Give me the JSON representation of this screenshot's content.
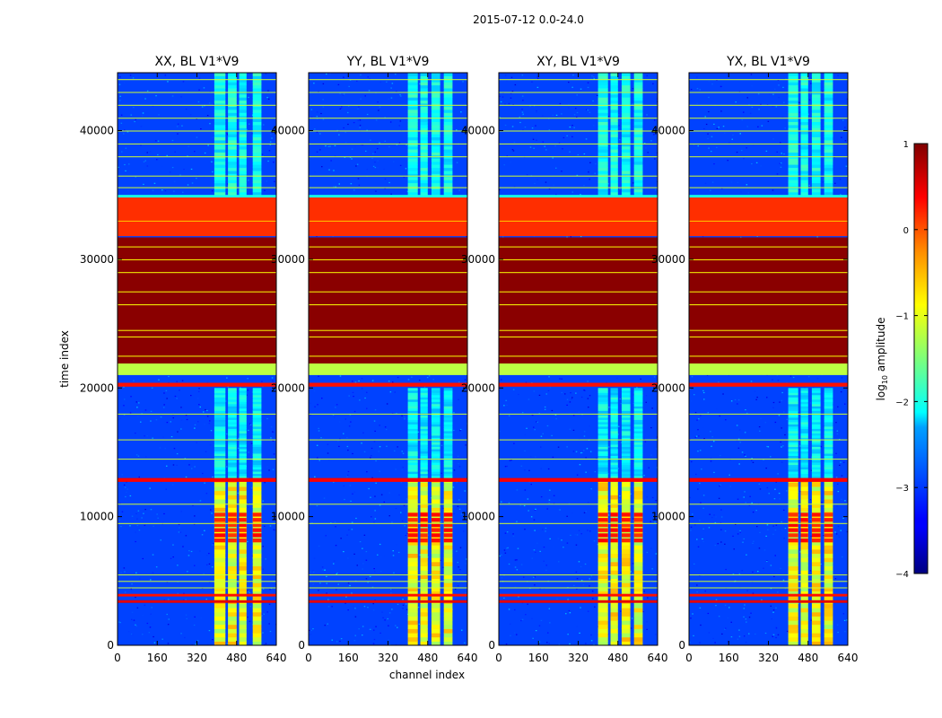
{
  "figure_title": "2015-07-12 0.0-24.0",
  "xlabel": "channel index",
  "ylabel": "time index",
  "colorbar": {
    "label": "log",
    "label_sub": "10",
    "label_rest": " amplitude",
    "range": [
      -4,
      1
    ],
    "ticks": [
      1,
      0,
      -1,
      -2,
      -3,
      -4
    ],
    "tick_labels": [
      "1",
      "0",
      "−1",
      "−2",
      "−3",
      "−4"
    ]
  },
  "chart_data": [
    {
      "type": "heatmap",
      "title": "XX, BL V1*V9",
      "xlim": [
        0,
        640
      ],
      "ylim": [
        0,
        44500
      ],
      "xticks": [
        0,
        160,
        320,
        480,
        640
      ],
      "yticks": [
        0,
        10000,
        20000,
        30000,
        40000
      ],
      "ytick_labels": [
        "0",
        "10000",
        "20000",
        "30000",
        "40000"
      ],
      "colormap": "jet",
      "value_unit": "log10 amplitude",
      "bands": [
        {
          "y0": 34800,
          "y1": 35000,
          "value": -2.0
        },
        {
          "y0": 31800,
          "y1": 34800,
          "value": 0.15
        },
        {
          "y0": 21900,
          "y1": 31700,
          "value": 0.95
        },
        {
          "y0": 21000,
          "y1": 21900,
          "value": -1.2
        },
        {
          "y0": 20100,
          "y1": 20400,
          "value": 0.3
        },
        {
          "y0": 12700,
          "y1": 13000,
          "value": 0.4
        },
        {
          "y0": 3800,
          "y1": 4000,
          "value": 0.3
        },
        {
          "y0": 3300,
          "y1": 3500,
          "value": 0.5
        }
      ],
      "flag_lines": [
        44000,
        43000,
        42000,
        41000,
        40000,
        39000,
        38000,
        36500,
        35600,
        18000,
        16000,
        14500,
        11000,
        9500,
        5500,
        5000,
        4500
      ],
      "rfi_columns": [
        [
          390,
          435
        ],
        [
          445,
          480
        ],
        [
          490,
          520
        ],
        [
          545,
          580
        ]
      ]
    },
    {
      "type": "heatmap",
      "title": "YY, BL V1*V9",
      "xlim": [
        0,
        640
      ],
      "ylim": [
        0,
        44500
      ],
      "xticks": [
        0,
        160,
        320,
        480,
        640
      ],
      "yticks": [
        0,
        10000,
        20000,
        30000,
        40000
      ],
      "ytick_labels": [
        "0",
        "10000",
        "20000",
        "30000",
        "40000"
      ],
      "colormap": "jet",
      "value_unit": "log10 amplitude",
      "bands": [
        {
          "y0": 34800,
          "y1": 35000,
          "value": -2.0
        },
        {
          "y0": 31800,
          "y1": 34800,
          "value": 0.15
        },
        {
          "y0": 21900,
          "y1": 31700,
          "value": 0.95
        },
        {
          "y0": 21000,
          "y1": 21900,
          "value": -1.2
        },
        {
          "y0": 20100,
          "y1": 20400,
          "value": 0.3
        },
        {
          "y0": 12700,
          "y1": 13000,
          "value": 0.4
        },
        {
          "y0": 3800,
          "y1": 4000,
          "value": 0.3
        },
        {
          "y0": 3300,
          "y1": 3500,
          "value": 0.5
        }
      ],
      "flag_lines": [
        44000,
        43000,
        42000,
        41000,
        40000,
        39000,
        38000,
        36500,
        35600,
        18000,
        16000,
        14500,
        11000,
        9500,
        5500,
        5000,
        4500
      ],
      "rfi_columns": [
        [
          400,
          440
        ],
        [
          450,
          480
        ],
        [
          495,
          530
        ],
        [
          545,
          580
        ]
      ]
    },
    {
      "type": "heatmap",
      "title": "XY, BL V1*V9",
      "xlim": [
        0,
        640
      ],
      "ylim": [
        0,
        44500
      ],
      "xticks": [
        0,
        160,
        320,
        480,
        640
      ],
      "yticks": [
        0,
        10000,
        20000,
        30000,
        40000
      ],
      "ytick_labels": [
        "0",
        "10000",
        "20000",
        "30000",
        "40000"
      ],
      "colormap": "jet",
      "value_unit": "log10 amplitude",
      "bands": [
        {
          "y0": 34800,
          "y1": 35000,
          "value": -2.0
        },
        {
          "y0": 31800,
          "y1": 34800,
          "value": 0.15
        },
        {
          "y0": 21900,
          "y1": 31700,
          "value": 0.95
        },
        {
          "y0": 21000,
          "y1": 21900,
          "value": -1.2
        },
        {
          "y0": 20100,
          "y1": 20400,
          "value": 0.3
        },
        {
          "y0": 12700,
          "y1": 13000,
          "value": 0.4
        },
        {
          "y0": 3800,
          "y1": 4000,
          "value": 0.3
        },
        {
          "y0": 3300,
          "y1": 3500,
          "value": 0.5
        }
      ],
      "flag_lines": [
        44000,
        43000,
        42000,
        41000,
        40000,
        39000,
        38000,
        36500,
        35600,
        18000,
        16000,
        14500,
        11000,
        9500,
        5500,
        5000,
        4500
      ],
      "rfi_columns": [
        [
          400,
          440
        ],
        [
          450,
          480
        ],
        [
          495,
          530
        ],
        [
          545,
          580
        ]
      ]
    },
    {
      "type": "heatmap",
      "title": "YX, BL V1*V9",
      "xlim": [
        0,
        640
      ],
      "ylim": [
        0,
        44500
      ],
      "xticks": [
        0,
        160,
        320,
        480,
        640
      ],
      "yticks": [
        0,
        10000,
        20000,
        30000,
        40000
      ],
      "ytick_labels": [
        "0",
        "10000",
        "20000",
        "30000",
        "40000"
      ],
      "colormap": "jet",
      "value_unit": "log10 amplitude",
      "bands": [
        {
          "y0": 34800,
          "y1": 35000,
          "value": -2.0
        },
        {
          "y0": 31800,
          "y1": 34800,
          "value": 0.15
        },
        {
          "y0": 21900,
          "y1": 31700,
          "value": 0.95
        },
        {
          "y0": 21000,
          "y1": 21900,
          "value": -1.2
        },
        {
          "y0": 20100,
          "y1": 20400,
          "value": 0.3
        },
        {
          "y0": 12700,
          "y1": 13000,
          "value": 0.4
        },
        {
          "y0": 3800,
          "y1": 4000,
          "value": 0.3
        },
        {
          "y0": 3300,
          "y1": 3500,
          "value": 0.5
        }
      ],
      "flag_lines": [
        44000,
        43000,
        42000,
        41000,
        40000,
        39000,
        38000,
        36500,
        35600,
        18000,
        16000,
        14500,
        11000,
        9500,
        5500,
        5000,
        4500
      ],
      "rfi_columns": [
        [
          400,
          440
        ],
        [
          450,
          480
        ],
        [
          495,
          530
        ],
        [
          545,
          580
        ]
      ]
    }
  ]
}
